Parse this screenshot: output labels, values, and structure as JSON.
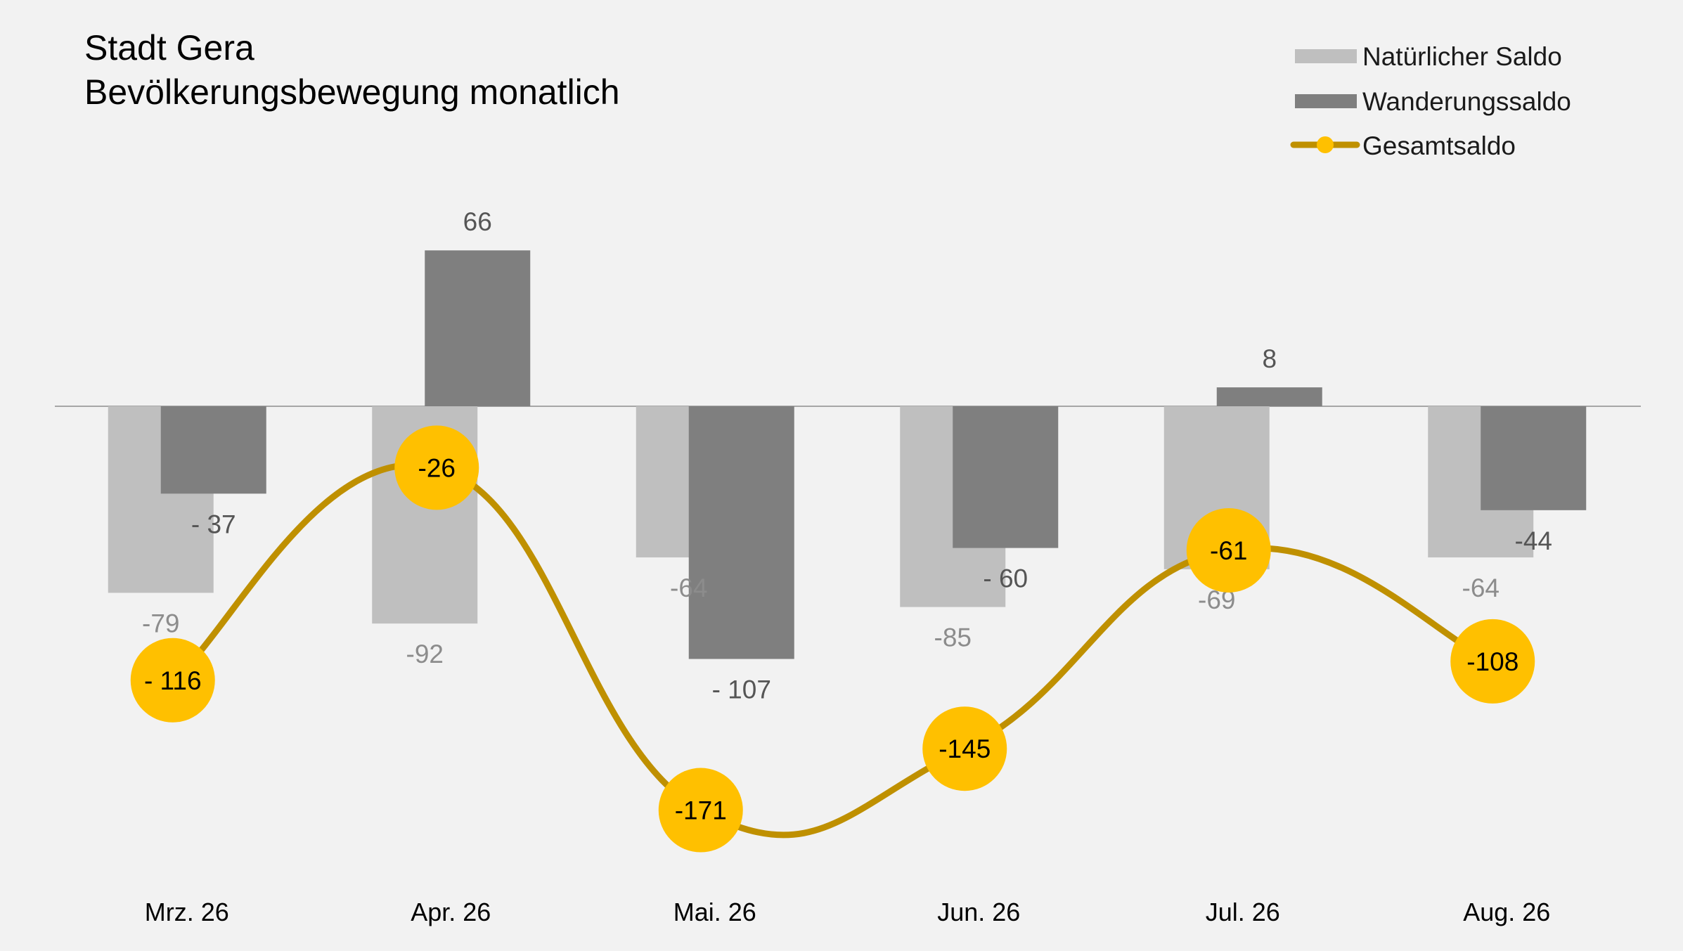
{
  "chart_data": {
    "type": "bar",
    "title": "Stadt Gera",
    "subtitle": "Bevölkerungsbewegung monatlich",
    "categories": [
      "Mrz. 26",
      "Apr. 26",
      "Mai. 26",
      "Jun. 26",
      "Jul. 26",
      "Aug. 26"
    ],
    "series": [
      {
        "name": "Natürlicher Saldo",
        "kind": "bar",
        "color": "#bfbfbf",
        "values": [
          -79,
          -92,
          -64,
          -85,
          -69,
          -64
        ],
        "labels": [
          "-79",
          "-92",
          "-64",
          "-85",
          "-69",
          "-64"
        ]
      },
      {
        "name": "Wanderungssaldo",
        "kind": "bar",
        "color": "#7f7f7f",
        "values": [
          -37,
          66,
          -107,
          -60,
          8,
          -44
        ],
        "labels": [
          "- 37",
          "66",
          "- 107",
          "- 60",
          "8",
          "-44"
        ]
      },
      {
        "name": "Gesamtsaldo",
        "kind": "line",
        "color": "#bf9000",
        "marker_color": "#ffc000",
        "values": [
          -116,
          -26,
          -171,
          -145,
          -61,
          -108
        ],
        "labels": [
          "- 116",
          "-26",
          "-171",
          "-145",
          "-61",
          "-108"
        ]
      }
    ],
    "legend_position": "top-right",
    "grid": false
  }
}
